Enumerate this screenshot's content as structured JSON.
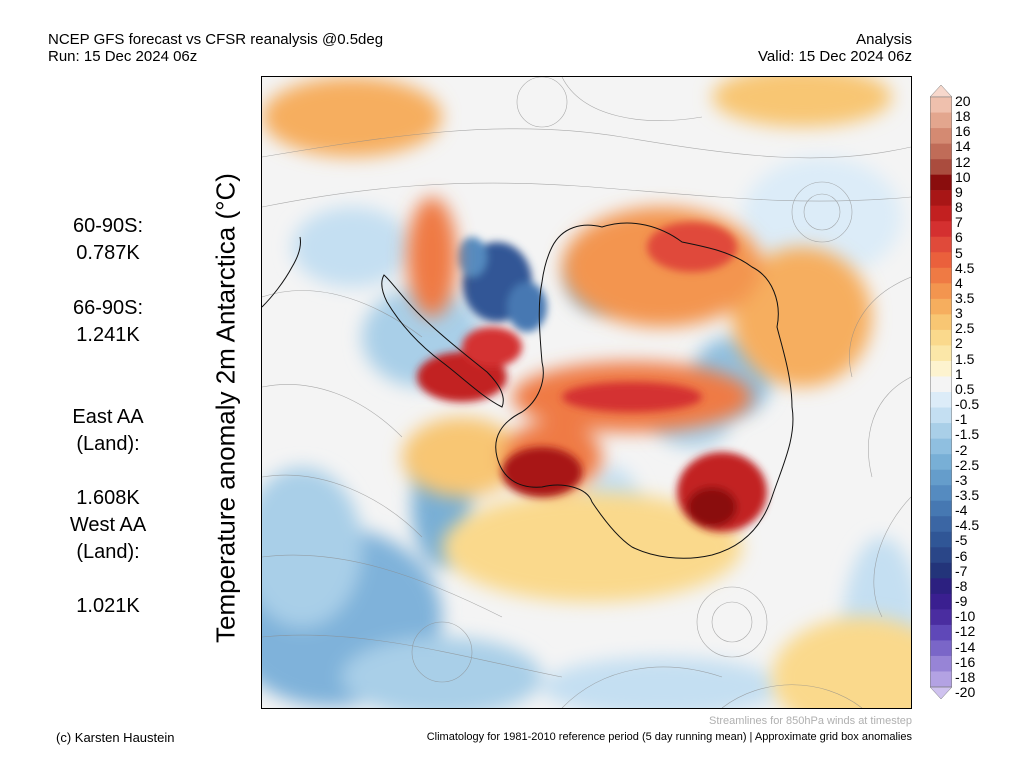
{
  "header": {
    "title_line1": "NCEP GFS forecast vs CFSR reanalysis @0.5deg",
    "title_line2": "Run: 15 Dec 2024 06z",
    "right_line1": "Analysis",
    "right_line2": "Valid: 15 Dec 2024 06z"
  },
  "y_title": "Temperature anomaly 2m Antarctica (°C)",
  "stats": [
    {
      "label": "60-90S:",
      "value": "0.787K"
    },
    {
      "label": "66-90S:",
      "value": "1.241K"
    },
    {
      "label": "East AA\n(Land):",
      "value": "1.608K"
    },
    {
      "label": "West AA\n(Land):",
      "value": "1.021K"
    }
  ],
  "colorbar": {
    "labels": [
      "20",
      "18",
      "16",
      "14",
      "12",
      "10",
      "9",
      "8",
      "7",
      "6",
      "5",
      "4.5",
      "4",
      "3.5",
      "3",
      "2.5",
      "2",
      "1.5",
      "1",
      "0.5",
      "-0.5",
      "-1",
      "-1.5",
      "-2",
      "-2.5",
      "-3",
      "-3.5",
      "-4",
      "-4.5",
      "-5",
      "-6",
      "-7",
      "-8",
      "-9",
      "-10",
      "-12",
      "-14",
      "-16",
      "-18",
      "-20"
    ],
    "colors": [
      "#f7d8cc",
      "#efc0ad",
      "#e3a68e",
      "#d48a72",
      "#c06c58",
      "#aa4c3e",
      "#8a0d0d",
      "#a81616",
      "#c22020",
      "#d43030",
      "#e04a3a",
      "#ea603c",
      "#ef7a44",
      "#f3954f",
      "#f6ae5e",
      "#f8c673",
      "#fad98c",
      "#fbe7a8",
      "#fdf3cf",
      "#f4f4f4",
      "#dcecf8",
      "#c4dff2",
      "#a9cfe8",
      "#8fbfe0",
      "#78afd6",
      "#659dcb",
      "#558bc0",
      "#4678b2",
      "#3b66a4",
      "#305696",
      "#2a4688",
      "#23347a",
      "#2c2080",
      "#3a1f90",
      "#4a2da0",
      "#5f48b8",
      "#7a66c8",
      "#9784d6",
      "#b3a2e3",
      "#cfc2ef"
    ]
  },
  "footer": {
    "credit": "(c) Karsten Haustein",
    "streamlines_note": "Streamlines for 850hPa winds at timestep",
    "climatology_note": "Climatology for 1981-2010 reference period (5 day running mean) | Approximate grid box anomalies"
  }
}
